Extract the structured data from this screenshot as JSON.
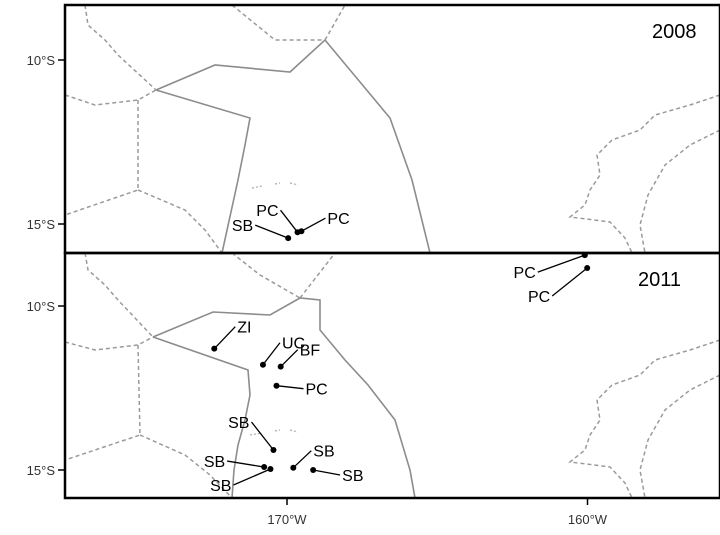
{
  "panels": [
    {
      "year": "2008",
      "sites": [
        {
          "label": "PC",
          "lon": -169.65,
          "lat": -15.25
        },
        {
          "label": "PC",
          "lon": -169.52,
          "lat": -15.22
        },
        {
          "label": "SB",
          "lon": -169.96,
          "lat": -15.43
        }
      ]
    },
    {
      "year": "2011",
      "sites": [
        {
          "label": "PC",
          "lon": -160.09,
          "lat": -8.45
        },
        {
          "label": "PC",
          "lon": -160.01,
          "lat": -8.84
        },
        {
          "label": "ZI",
          "lon": -172.42,
          "lat": -11.3
        },
        {
          "label": "UC",
          "lon": -170.8,
          "lat": -11.79
        },
        {
          "label": "BF",
          "lon": -170.21,
          "lat": -11.85
        },
        {
          "label": "PC",
          "lon": -170.35,
          "lat": -12.43
        },
        {
          "label": "SB",
          "lon": -170.45,
          "lat": -14.39
        },
        {
          "label": "SB",
          "lon": -170.76,
          "lat": -14.91
        },
        {
          "label": "SB",
          "lon": -170.55,
          "lat": -14.97
        },
        {
          "label": "SB",
          "lon": -169.79,
          "lat": -14.93
        },
        {
          "label": "SB",
          "lon": -169.13,
          "lat": -15.0
        }
      ]
    }
  ],
  "axes": {
    "y_ticks": [
      {
        "label": "10°S",
        "lat": -10
      },
      {
        "label": "15°S",
        "lat": -15
      }
    ],
    "x_ticks": [
      {
        "label": "170°W",
        "lon": -170
      },
      {
        "label": "160°W",
        "lon": -160
      }
    ]
  },
  "colors": {
    "eez_solid": "#8c8c8c",
    "eez_dashed": "#9a9a9a",
    "site_marker": "#000000",
    "frame": "#000000"
  }
}
